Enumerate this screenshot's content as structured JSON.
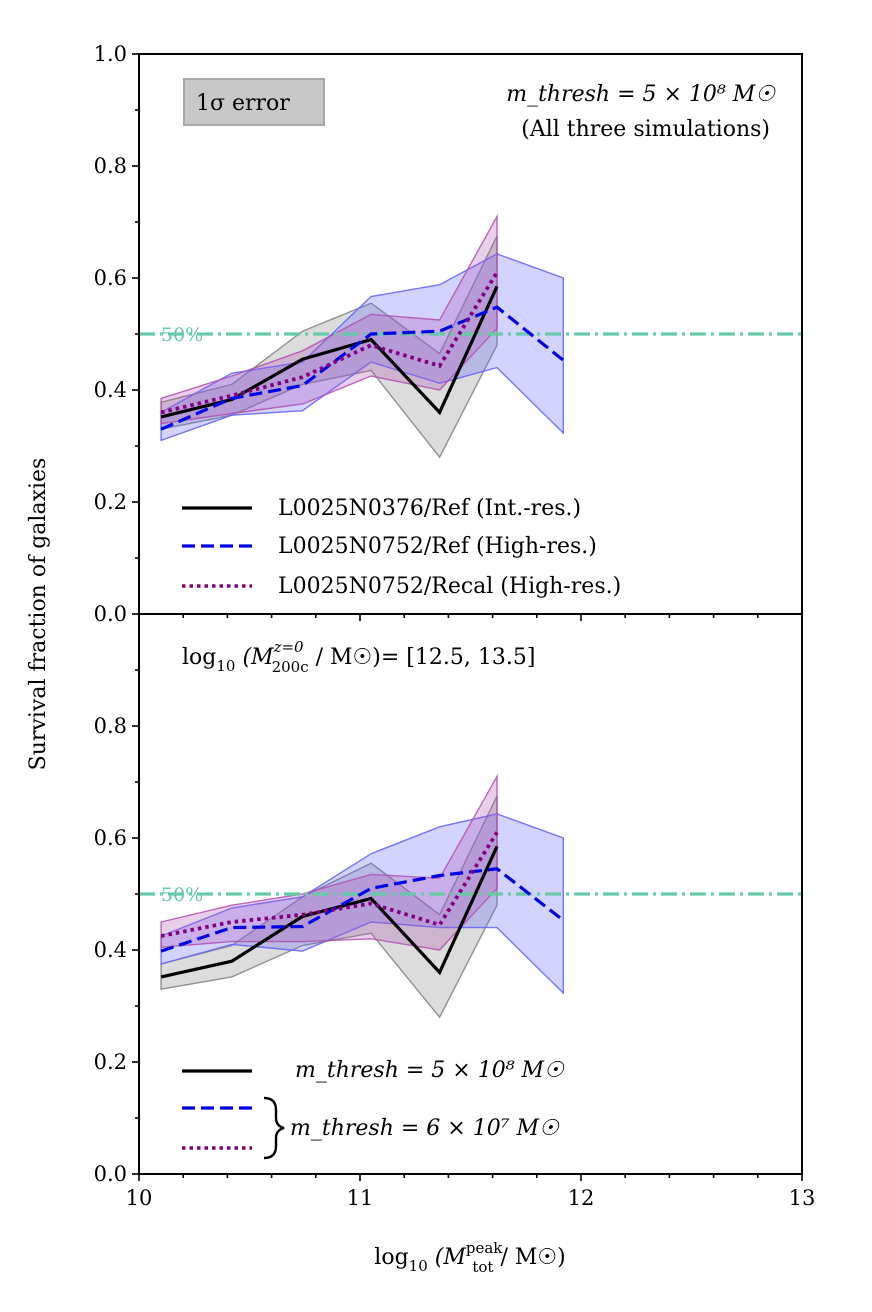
{
  "chart_data": {
    "type": "line",
    "ylabel": "Survival fraction of galaxies",
    "xlabel": {
      "prefix": "log",
      "sub": "10",
      "open": " (M",
      "sup": "peak",
      "sub2": "tot",
      "close": " / M☉)"
    },
    "xlim": [
      10,
      13
    ],
    "x_ticks": [
      "10",
      "11",
      "12",
      "13"
    ],
    "error_legend": "1σ error",
    "reference_line": {
      "value": 0.5,
      "label": "50%",
      "color": "#66c9a8"
    },
    "panels": [
      {
        "id": "top",
        "ylim": [
          0.0,
          1.0
        ],
        "y_ticks": [
          "0.0",
          "0.2",
          "0.4",
          "0.6",
          "0.8",
          "1.0"
        ],
        "annotation_line1": "m_thresh = 5 × 10⁸ M☉",
        "annotation_line2": "(All three simulations)",
        "legend": [
          "L0025N0376/Ref (Int.-res.)",
          "L0025N0752/Ref (High-res.)",
          "L0025N0752/Recal (High-res.)"
        ],
        "series": [
          {
            "name": "L0025N0376/Ref (Int.-res.)",
            "style": "solid",
            "color": "#000000",
            "fill": "#808080",
            "x": [
              10.1,
              10.42,
              10.74,
              11.05,
              11.36,
              11.62
            ],
            "y": [
              0.352,
              0.383,
              0.455,
              0.49,
              0.36,
              0.585
            ],
            "lo": [
              0.33,
              0.355,
              0.41,
              0.435,
              0.28,
              0.48
            ],
            "hi": [
              0.378,
              0.41,
              0.505,
              0.555,
              0.465,
              0.675
            ]
          },
          {
            "name": "L0025N0752/Ref (High-res.)",
            "style": "dashed",
            "color": "#0000e6",
            "fill": "#6060ff",
            "x": [
              10.1,
              10.42,
              10.74,
              11.05,
              11.36,
              11.62,
              11.92
            ],
            "y": [
              0.33,
              0.385,
              0.408,
              0.5,
              0.505,
              0.548,
              0.453
            ],
            "lo": [
              0.31,
              0.355,
              0.363,
              0.45,
              0.412,
              0.44,
              0.323
            ],
            "hi": [
              0.36,
              0.43,
              0.45,
              0.567,
              0.588,
              0.643,
              0.6
            ]
          },
          {
            "name": "L0025N0752/Recal (High-res.)",
            "style": "dotted",
            "color": "#800080",
            "fill": "#b050b0",
            "x": [
              10.1,
              10.42,
              10.74,
              11.05,
              11.36,
              11.62
            ],
            "y": [
              0.36,
              0.39,
              0.423,
              0.48,
              0.443,
              0.61
            ],
            "lo": [
              0.34,
              0.358,
              0.375,
              0.425,
              0.4,
              0.51
            ],
            "hi": [
              0.385,
              0.425,
              0.47,
              0.535,
              0.525,
              0.71
            ]
          }
        ]
      },
      {
        "id": "bottom",
        "ylim": [
          0.0,
          1.0
        ],
        "y_ticks": [
          "0.0",
          "0.2",
          "0.4",
          "0.6",
          "0.8"
        ],
        "annotation": {
          "prefix": "log",
          "sub": "10",
          "open": " (M",
          "sup": "z=0",
          "sub2": "200c",
          "tail": " / M☉)= [12.5, 13.5]"
        },
        "legend_line1": "m_thresh = 5 × 10⁸ M☉",
        "legend_line2": "m_thresh = 6 × 10⁷ M☉",
        "series": [
          {
            "name": "L0025N0376/Ref",
            "style": "solid",
            "color": "#000000",
            "fill": "#808080",
            "x": [
              10.1,
              10.42,
              10.74,
              11.05,
              11.36,
              11.62
            ],
            "y": [
              0.352,
              0.38,
              0.46,
              0.492,
              0.36,
              0.585
            ],
            "lo": [
              0.33,
              0.352,
              0.408,
              0.43,
              0.28,
              0.48
            ],
            "hi": [
              0.375,
              0.408,
              0.495,
              0.555,
              0.463,
              0.675
            ]
          },
          {
            "name": "L0025N0752/Ref",
            "style": "dashed",
            "color": "#0000e6",
            "fill": "#6060ff",
            "x": [
              10.1,
              10.42,
              10.74,
              11.05,
              11.36,
              11.62,
              11.92
            ],
            "y": [
              0.398,
              0.44,
              0.442,
              0.51,
              0.533,
              0.545,
              0.453
            ],
            "lo": [
              0.375,
              0.41,
              0.398,
              0.45,
              0.44,
              0.44,
              0.323
            ],
            "hi": [
              0.425,
              0.475,
              0.495,
              0.572,
              0.62,
              0.643,
              0.6
            ]
          },
          {
            "name": "L0025N0752/Recal",
            "style": "dotted",
            "color": "#800080",
            "fill": "#b050b0",
            "x": [
              10.1,
              10.42,
              10.74,
              11.05,
              11.36,
              11.62
            ],
            "y": [
              0.425,
              0.45,
              0.463,
              0.483,
              0.445,
              0.61
            ],
            "lo": [
              0.405,
              0.415,
              0.415,
              0.42,
              0.4,
              0.51
            ],
            "hi": [
              0.45,
              0.48,
              0.5,
              0.535,
              0.528,
              0.71
            ]
          }
        ]
      }
    ]
  }
}
